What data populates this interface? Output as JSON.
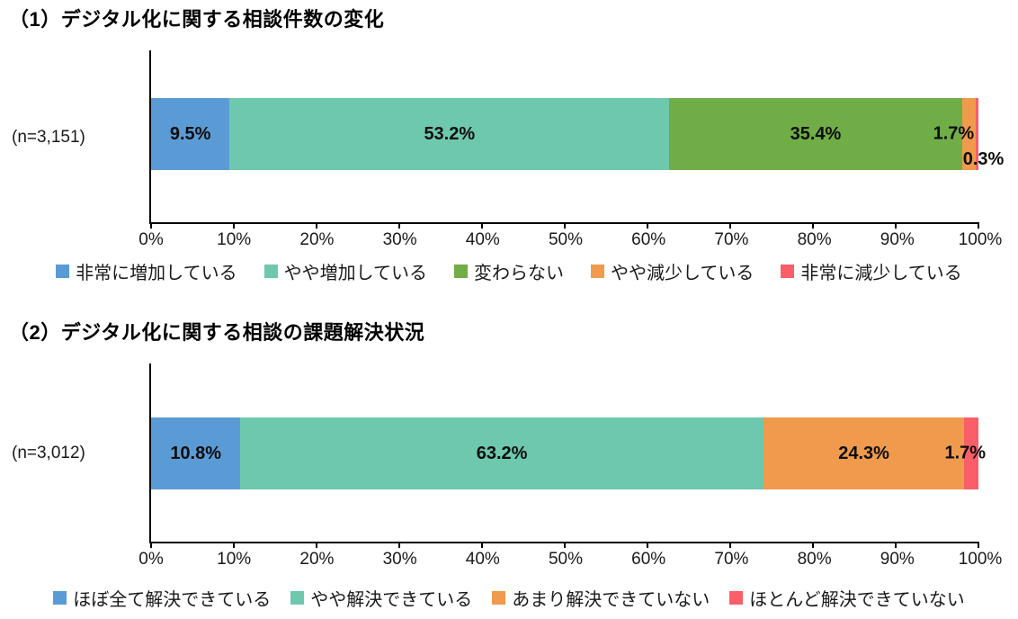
{
  "page": {
    "background": "#ffffff"
  },
  "chart_data": [
    {
      "type": "bar",
      "variant": "horizontal-stacked-100pct",
      "title": "（1）デジタル化に関する相談件数の変化",
      "n_label": "(n=3,151)",
      "xlim": [
        0,
        100
      ],
      "tick_step": 10,
      "tick_labels": [
        "0%",
        "10%",
        "20%",
        "30%",
        "40%",
        "50%",
        "60%",
        "70%",
        "80%",
        "90%",
        "100%"
      ],
      "legend_position": "bottom",
      "grid": "off",
      "series": [
        {
          "name": "非常に増加している",
          "value": 9.5,
          "display": "9.5%",
          "color": "#5B9BD5"
        },
        {
          "name": "やや増加している",
          "value": 53.2,
          "display": "53.2%",
          "color": "#6EC8AD"
        },
        {
          "name": "変わらない",
          "value": 35.4,
          "display": "35.4%",
          "color": "#70AD47"
        },
        {
          "name": "やや減少している",
          "value": 1.7,
          "display": "1.7%",
          "color": "#EF9A4D"
        },
        {
          "name": "非常に減少している",
          "value": 0.3,
          "display": "0.3%",
          "color": "#FA5E68"
        }
      ],
      "label_overrides": {
        "3": {
          "x_pct": 97.0,
          "valign": "middle"
        },
        "4": {
          "x_pct": 100.6,
          "valign": "bottom"
        }
      }
    },
    {
      "type": "bar",
      "variant": "horizontal-stacked-100pct",
      "title": "（2）デジタル化に関する相談の課題解決状況",
      "n_label": "(n=3,012)",
      "xlim": [
        0,
        100
      ],
      "tick_step": 10,
      "tick_labels": [
        "0%",
        "10%",
        "20%",
        "30%",
        "40%",
        "50%",
        "60%",
        "70%",
        "80%",
        "90%",
        "100%"
      ],
      "legend_position": "bottom",
      "grid": "off",
      "series": [
        {
          "name": "ほぼ全て解決できている",
          "value": 10.8,
          "display": "10.8%",
          "color": "#5B9BD5"
        },
        {
          "name": "やや解決できている",
          "value": 63.2,
          "display": "63.2%",
          "color": "#6EC8AD"
        },
        {
          "name": "あまり解決できていない",
          "value": 24.3,
          "display": "24.3%",
          "color": "#EF9A4D"
        },
        {
          "name": "ほとんど解決できていない",
          "value": 1.7,
          "display": "1.7%",
          "color": "#FA5E68"
        }
      ],
      "label_overrides": {
        "3": {
          "x_pct": 98.4,
          "valign": "middle"
        }
      }
    }
  ]
}
